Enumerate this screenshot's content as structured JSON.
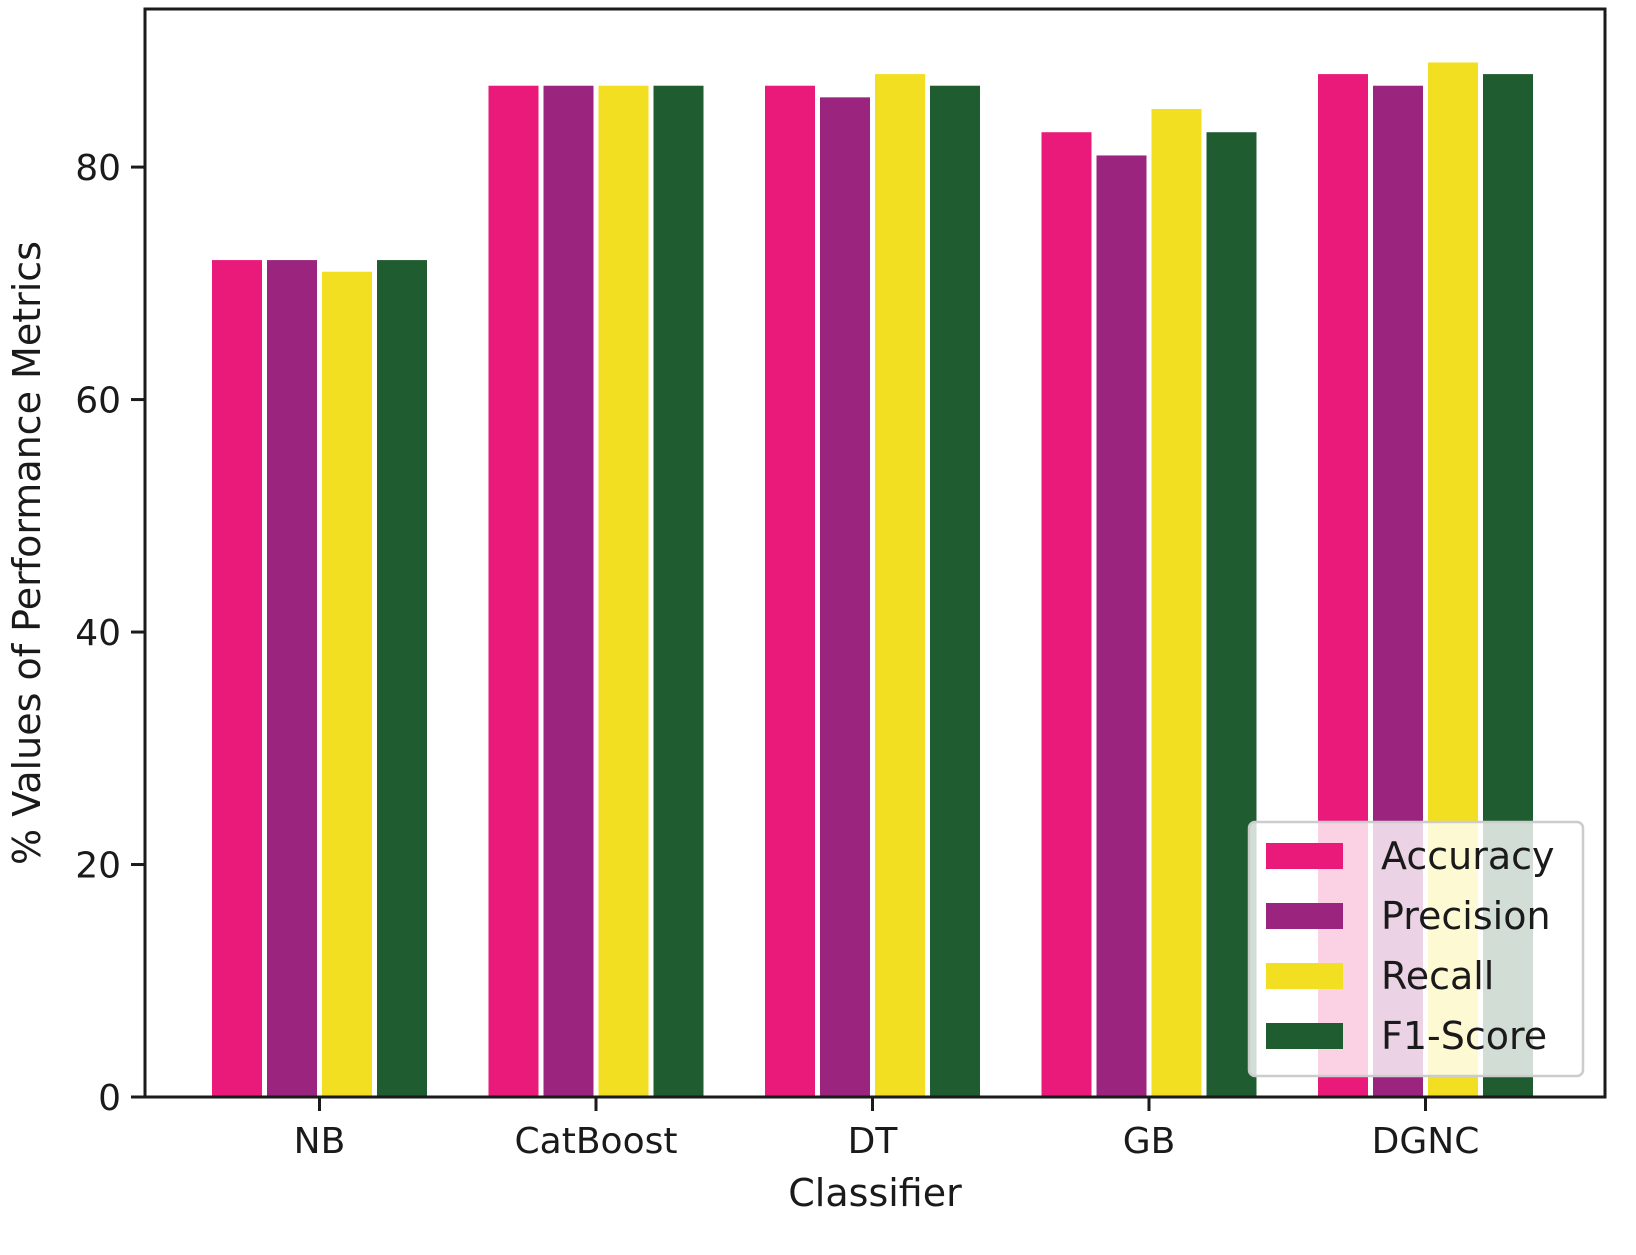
{
  "chart_data": {
    "type": "bar",
    "title": "",
    "xlabel": "Classifier",
    "ylabel": "% Values of Performance Metrics",
    "categories": [
      "NB",
      "CatBoost",
      "DT",
      "GB",
      "DGNC"
    ],
    "series": [
      {
        "name": "Accuracy",
        "color": "#ea1a7a",
        "values": [
          72,
          87,
          87,
          83,
          88
        ]
      },
      {
        "name": "Precision",
        "color": "#9b247f",
        "values": [
          72,
          87,
          86,
          81,
          87
        ]
      },
      {
        "name": "Recall",
        "color": "#f3df22",
        "values": [
          71,
          87,
          88,
          85,
          89
        ]
      },
      {
        "name": "F1-Score",
        "color": "#1f5c30",
        "values": [
          72,
          87,
          87,
          83,
          88
        ]
      }
    ],
    "ylim": [
      0,
      93.6
    ],
    "yticks": [
      0,
      20,
      40,
      60,
      80
    ],
    "grid": false,
    "legend_position": "lower-right"
  }
}
